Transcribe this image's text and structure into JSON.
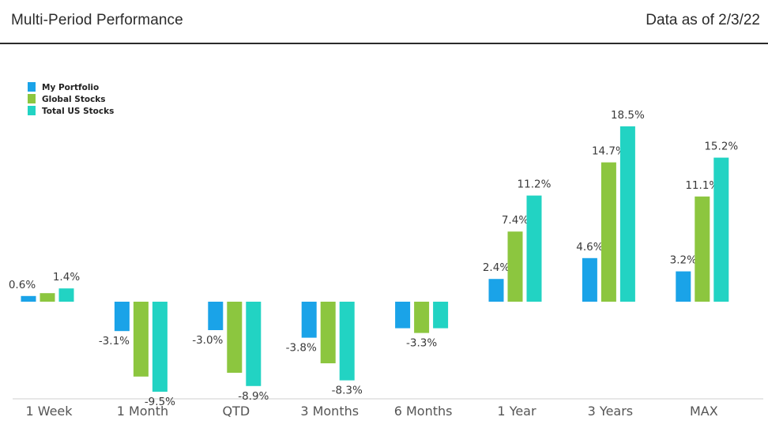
{
  "header": {
    "title": "Multi-Period Performance",
    "as_of": "Data as of 2/3/22"
  },
  "chart_data": {
    "type": "bar",
    "categories": [
      "1 Week",
      "1 Month",
      "QTD",
      "3 Months",
      "6 Months",
      "1 Year",
      "3 Years",
      "MAX"
    ],
    "series": [
      {
        "name": "My Portfolio",
        "color": "#1aa3e8",
        "values": [
          0.6,
          -3.1,
          -3.0,
          -3.8,
          -2.8,
          2.4,
          4.6,
          3.2
        ],
        "labels": [
          "0.6%",
          "-3.1%",
          "-3.0%",
          "-3.8%",
          "",
          "2.4%",
          "4.6%",
          "3.2%"
        ]
      },
      {
        "name": "Global Stocks",
        "color": "#8cc63f",
        "values": [
          0.9,
          -7.9,
          -7.5,
          -6.5,
          -3.3,
          7.4,
          14.7,
          11.1
        ],
        "labels": [
          "",
          "",
          "",
          "",
          "-3.3%",
          "7.4%",
          "14.7%",
          "11.1%"
        ]
      },
      {
        "name": "Total US Stocks",
        "color": "#22d3c3",
        "values": [
          1.4,
          -9.5,
          -8.9,
          -8.3,
          -2.8,
          11.2,
          18.5,
          15.2
        ],
        "labels": [
          "1.4%",
          "-9.5%",
          "-8.9%",
          "-8.3%",
          "",
          "11.2%",
          "18.5%",
          "15.2%"
        ]
      }
    ],
    "ylim": [
      -10.5,
      19.5
    ],
    "grid": false,
    "legend_position": "top-left"
  }
}
